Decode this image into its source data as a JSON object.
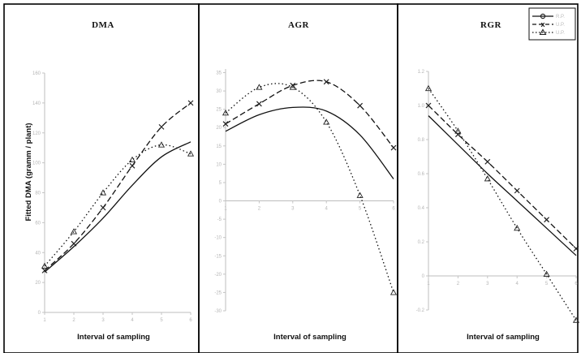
{
  "figure": {
    "ylabel": "Fitted DMA (gramm / plant)",
    "legend": {
      "placement": "top-right",
      "entries": [
        "R.P.",
        "U.P.",
        "U.P."
      ]
    }
  },
  "chart_data": [
    {
      "type": "line",
      "title": "DMA",
      "xlabel": "Interval of sampling",
      "ylabel": "Fitted DMA (gramm / plant)",
      "x": [
        1,
        2,
        3,
        4,
        5,
        6
      ],
      "xlim": [
        1,
        6
      ],
      "ylim": [
        0,
        160
      ],
      "yticks": [
        0,
        20,
        40,
        60,
        80,
        100,
        120,
        140,
        160
      ],
      "ytick_labels": [
        "0",
        "20",
        "40",
        "60",
        "80",
        "100",
        "120",
        "140",
        "160"
      ],
      "xtick_labels": [
        "1",
        "2",
        "3",
        "4",
        "5",
        "6"
      ],
      "grid": false,
      "series": [
        {
          "style": "solid",
          "marker": "none",
          "values": [
            27,
            44,
            63,
            85,
            104,
            114
          ]
        },
        {
          "style": "dashed",
          "marker": "x",
          "values": [
            28,
            46,
            70,
            98,
            124,
            140
          ]
        },
        {
          "style": "dotted",
          "marker": "triangle",
          "values": [
            31,
            54,
            80,
            102,
            112,
            106
          ]
        }
      ]
    },
    {
      "type": "line",
      "title": "AGR",
      "xlabel": "Interval of sampling",
      "x": [
        1,
        2,
        3,
        4,
        5,
        6
      ],
      "xlim": [
        1,
        6
      ],
      "ylim": [
        -30,
        36
      ],
      "yticks": [
        -30,
        -25,
        -20,
        -15,
        -10,
        -5,
        0,
        5,
        10,
        15,
        20,
        25,
        30,
        35
      ],
      "ytick_labels": [
        "-30",
        "-25",
        "-20",
        "-15",
        "-10",
        "-5",
        "0",
        "5",
        "10",
        "15",
        "20",
        "25",
        "30",
        "35"
      ],
      "xtick_labels": [
        "1",
        "2",
        "3",
        "4",
        "5",
        "6"
      ],
      "grid": false,
      "series": [
        {
          "style": "solid",
          "marker": "none",
          "values": [
            19,
            23.5,
            25.5,
            24.5,
            18,
            6
          ]
        },
        {
          "style": "dashed",
          "marker": "x",
          "values": [
            21,
            26.5,
            31.5,
            32.5,
            26,
            14.5
          ]
        },
        {
          "style": "dotted",
          "marker": "triangle",
          "values": [
            24,
            31,
            31,
            21.5,
            1.5,
            -25
          ]
        }
      ]
    },
    {
      "type": "line",
      "title": "RGR",
      "xlabel": "Interval of sampling",
      "x": [
        1,
        2,
        3,
        4,
        5,
        6
      ],
      "xlim": [
        1,
        6
      ],
      "ylim": [
        -0.2,
        1.2
      ],
      "yticks": [
        -0.2,
        0,
        0.2,
        0.4,
        0.6,
        0.8,
        1.0,
        1.2
      ],
      "ytick_labels": [
        "-0.2",
        "0",
        "0.2",
        "0.4",
        "0.6",
        "0.8",
        "1.0",
        "1.2"
      ],
      "xtick_labels": [
        "1",
        "2",
        "3",
        "4",
        "5",
        "6"
      ],
      "grid": false,
      "series": [
        {
          "style": "solid",
          "marker": "none",
          "values": [
            0.94,
            0.77,
            0.6,
            0.44,
            0.28,
            0.12
          ]
        },
        {
          "style": "dashed",
          "marker": "x",
          "values": [
            1.0,
            0.83,
            0.67,
            0.5,
            0.33,
            0.16
          ]
        },
        {
          "style": "dotted",
          "marker": "triangle",
          "values": [
            1.1,
            0.85,
            0.57,
            0.28,
            0.01,
            -0.26
          ]
        }
      ]
    }
  ]
}
